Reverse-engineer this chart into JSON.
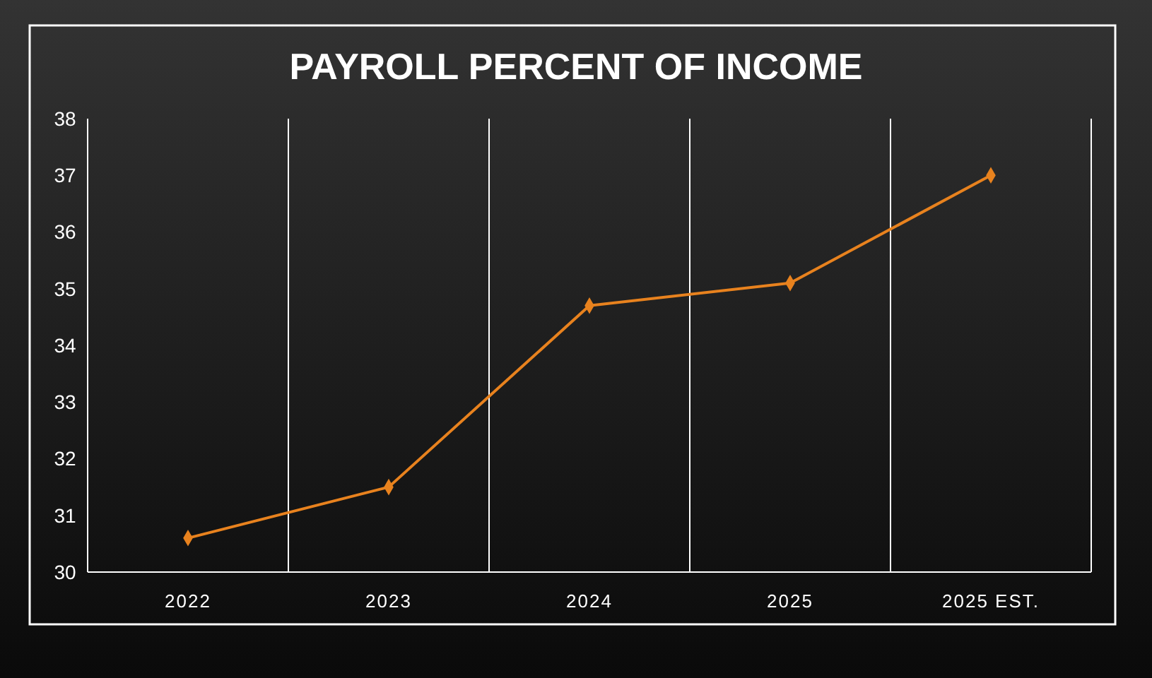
{
  "chart_data": {
    "type": "line",
    "title": "PAYROLL PERCENT OF INCOME",
    "categories": [
      "2022",
      "2023",
      "2024",
      "2025",
      "2025 EST."
    ],
    "series": [
      {
        "color": "#e8821e",
        "values": [
          30.6,
          31.5,
          34.7,
          35.1,
          37.0
        ]
      }
    ],
    "ylim": [
      30,
      38
    ],
    "yticks": [
      30,
      31,
      32,
      33,
      34,
      35,
      36,
      37,
      38
    ],
    "grid": "x",
    "marker": "diamond",
    "line_style": "solid"
  }
}
